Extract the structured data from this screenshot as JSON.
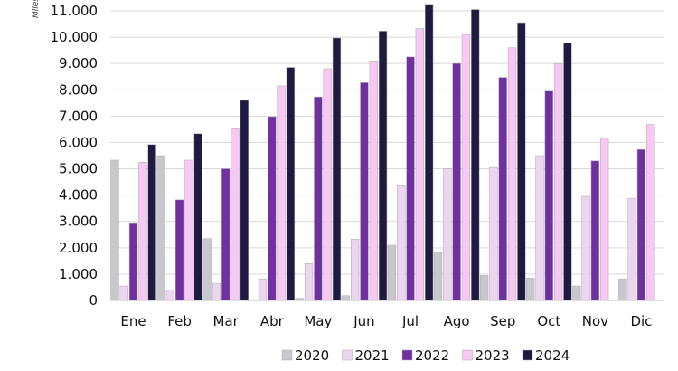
{
  "chart_data": {
    "type": "bar",
    "ylabel": "Miles",
    "ylim": [
      0,
      11000
    ],
    "yticks": [
      "0",
      "1.000",
      "2.000",
      "3.000",
      "4.000",
      "5.000",
      "6.000",
      "7.000",
      "8.000",
      "9.000",
      "10.000",
      "11.000"
    ],
    "grid": true,
    "legend_position": "bottom",
    "categories": [
      "Ene",
      "Feb",
      "Mar",
      "Abr",
      "May",
      "Jun",
      "Jul",
      "Ago",
      "Sep",
      "Oct",
      "Nov",
      "Dic"
    ],
    "series": [
      {
        "name": "2020",
        "color": "#c8c8cc",
        "values": [
          5330,
          5500,
          2350,
          30,
          80,
          180,
          2100,
          1850,
          950,
          850,
          550,
          820
        ]
      },
      {
        "name": "2021",
        "color": "#ecd5ef",
        "values": [
          550,
          400,
          650,
          820,
          1400,
          2330,
          4350,
          5000,
          5050,
          5500,
          3950,
          3880
        ]
      },
      {
        "name": "2022",
        "color": "#7030a0",
        "values": [
          2950,
          3820,
          5000,
          6980,
          7730,
          8270,
          9250,
          9000,
          8470,
          7950,
          5300,
          5730
        ]
      },
      {
        "name": "2023",
        "color": "#f7c8f3",
        "values": [
          5250,
          5330,
          6520,
          8150,
          8800,
          9100,
          10330,
          10100,
          9600,
          9000,
          6170,
          6680
        ]
      },
      {
        "name": "2024",
        "color": "#1f1a40",
        "values": [
          5920,
          6330,
          7600,
          8850,
          9970,
          10230,
          11250,
          11050,
          10550,
          9770,
          null,
          null
        ]
      }
    ]
  }
}
